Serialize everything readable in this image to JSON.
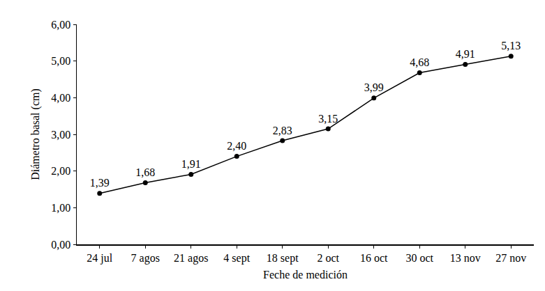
{
  "chart_data": {
    "type": "line",
    "x_label": "Feche de medición",
    "y_label": "Diámetro basal (cm)",
    "categories": [
      "24 jul",
      "7 agos",
      "21 agos",
      "4 sept",
      "18 sept",
      "2 oct",
      "16 oct",
      "30 oct",
      "13 nov",
      "27 nov"
    ],
    "values": [
      1.39,
      1.68,
      1.91,
      2.4,
      2.83,
      3.15,
      3.99,
      4.68,
      4.91,
      5.13
    ],
    "value_labels": [
      "1,39",
      "1,68",
      "1,91",
      "2,40",
      "2,83",
      "3,15",
      "3,99",
      "4,68",
      "4,91",
      "5,13"
    ],
    "color": "#000000",
    "marker": "circle",
    "line_style": "solid",
    "data_labels": true,
    "grid": false,
    "ylim": [
      0,
      6
    ],
    "yticks": [
      {
        "value": 0,
        "label": "0,00"
      },
      {
        "value": 1,
        "label": "1,00"
      },
      {
        "value": 2,
        "label": "2,00"
      },
      {
        "value": 3,
        "label": "3,00"
      },
      {
        "value": 4,
        "label": "4,00"
      },
      {
        "value": 5,
        "label": "5,00"
      },
      {
        "value": 6,
        "label": "6,00"
      }
    ]
  }
}
